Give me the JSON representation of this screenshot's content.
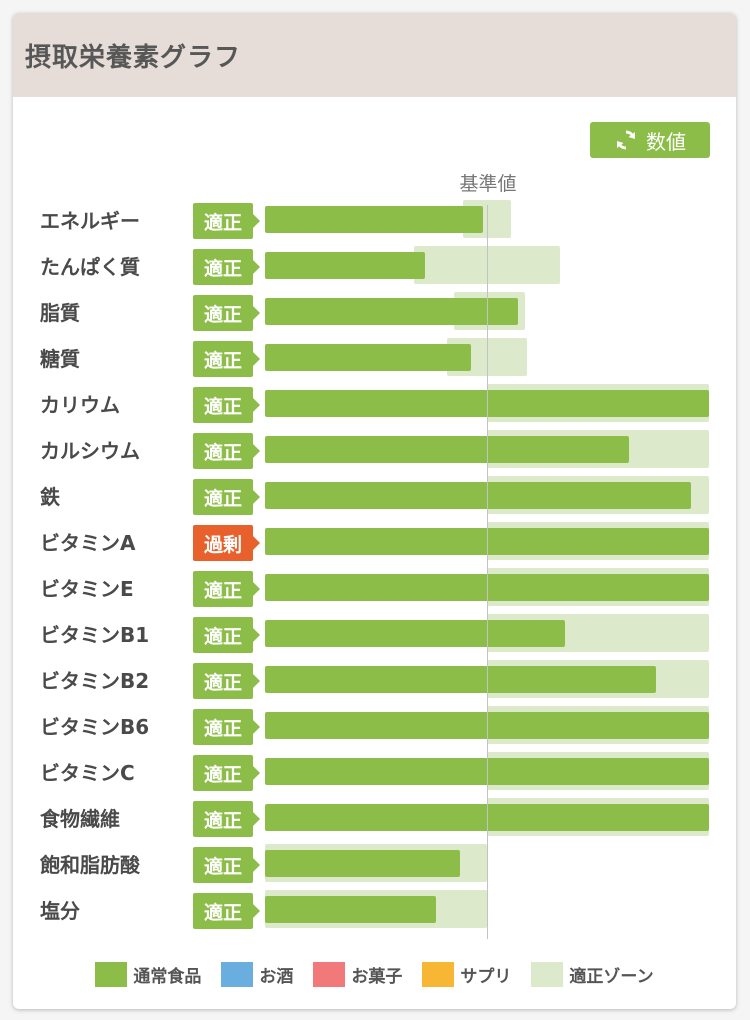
{
  "card": {
    "title": "摂取栄養素グラフ"
  },
  "toggle": {
    "label": "数値",
    "icon": "refresh-icon"
  },
  "reference_label": "基準値",
  "colors": {
    "header_bg": "#e6ddd8",
    "bar": "#8cbd48",
    "zone": "#dde9cb",
    "badge_ok": "#8cbd48",
    "badge_excess": "#e8612c",
    "alcohol": "#6aaee0",
    "snacks": "#f2797a",
    "supplement": "#f7b634"
  },
  "chart_data": {
    "type": "bar",
    "reference_value": 1.0,
    "categories": [
      "エネルギー",
      "たんぱく質",
      "脂質",
      "糖質",
      "カリウム",
      "カルシウム",
      "鉄",
      "ビタミンA",
      "ビタミンE",
      "ビタミンB1",
      "ビタミンB2",
      "ビタミンB6",
      "ビタミンC",
      "食物繊維",
      "飽和脂肪酸",
      "塩分"
    ],
    "series": [
      {
        "name": "通常食品",
        "values": [
          0.98,
          0.72,
          1.14,
          0.93,
          2.0,
          1.64,
          1.92,
          2.0,
          2.0,
          1.35,
          1.76,
          2.0,
          2.0,
          2.0,
          0.88,
          0.77
        ]
      }
    ],
    "zones": [
      [
        0.89,
        1.11
      ],
      [
        0.67,
        1.33
      ],
      [
        0.85,
        1.17
      ],
      [
        0.82,
        1.18
      ],
      [
        1.0,
        2.0
      ],
      [
        1.0,
        2.0
      ],
      [
        1.0,
        2.0
      ],
      [
        1.0,
        2.0
      ],
      [
        1.0,
        2.0
      ],
      [
        1.0,
        2.0
      ],
      [
        1.0,
        2.0
      ],
      [
        1.0,
        2.0
      ],
      [
        1.0,
        2.0
      ],
      [
        1.0,
        2.0
      ],
      [
        0.0,
        1.0
      ],
      [
        0.0,
        1.0
      ]
    ],
    "status": [
      "適正",
      "適正",
      "適正",
      "適正",
      "適正",
      "適正",
      "適正",
      "過剰",
      "適正",
      "適正",
      "適正",
      "適正",
      "適正",
      "適正",
      "適正",
      "適正"
    ]
  },
  "legend": [
    {
      "label": "通常食品",
      "color": "#8cbd48"
    },
    {
      "label": "お酒",
      "color": "#6aaee0"
    },
    {
      "label": "お菓子",
      "color": "#f2797a"
    },
    {
      "label": "サプリ",
      "color": "#f7b634"
    },
    {
      "label": "適正ゾーン",
      "color": "#dde9cb"
    }
  ]
}
